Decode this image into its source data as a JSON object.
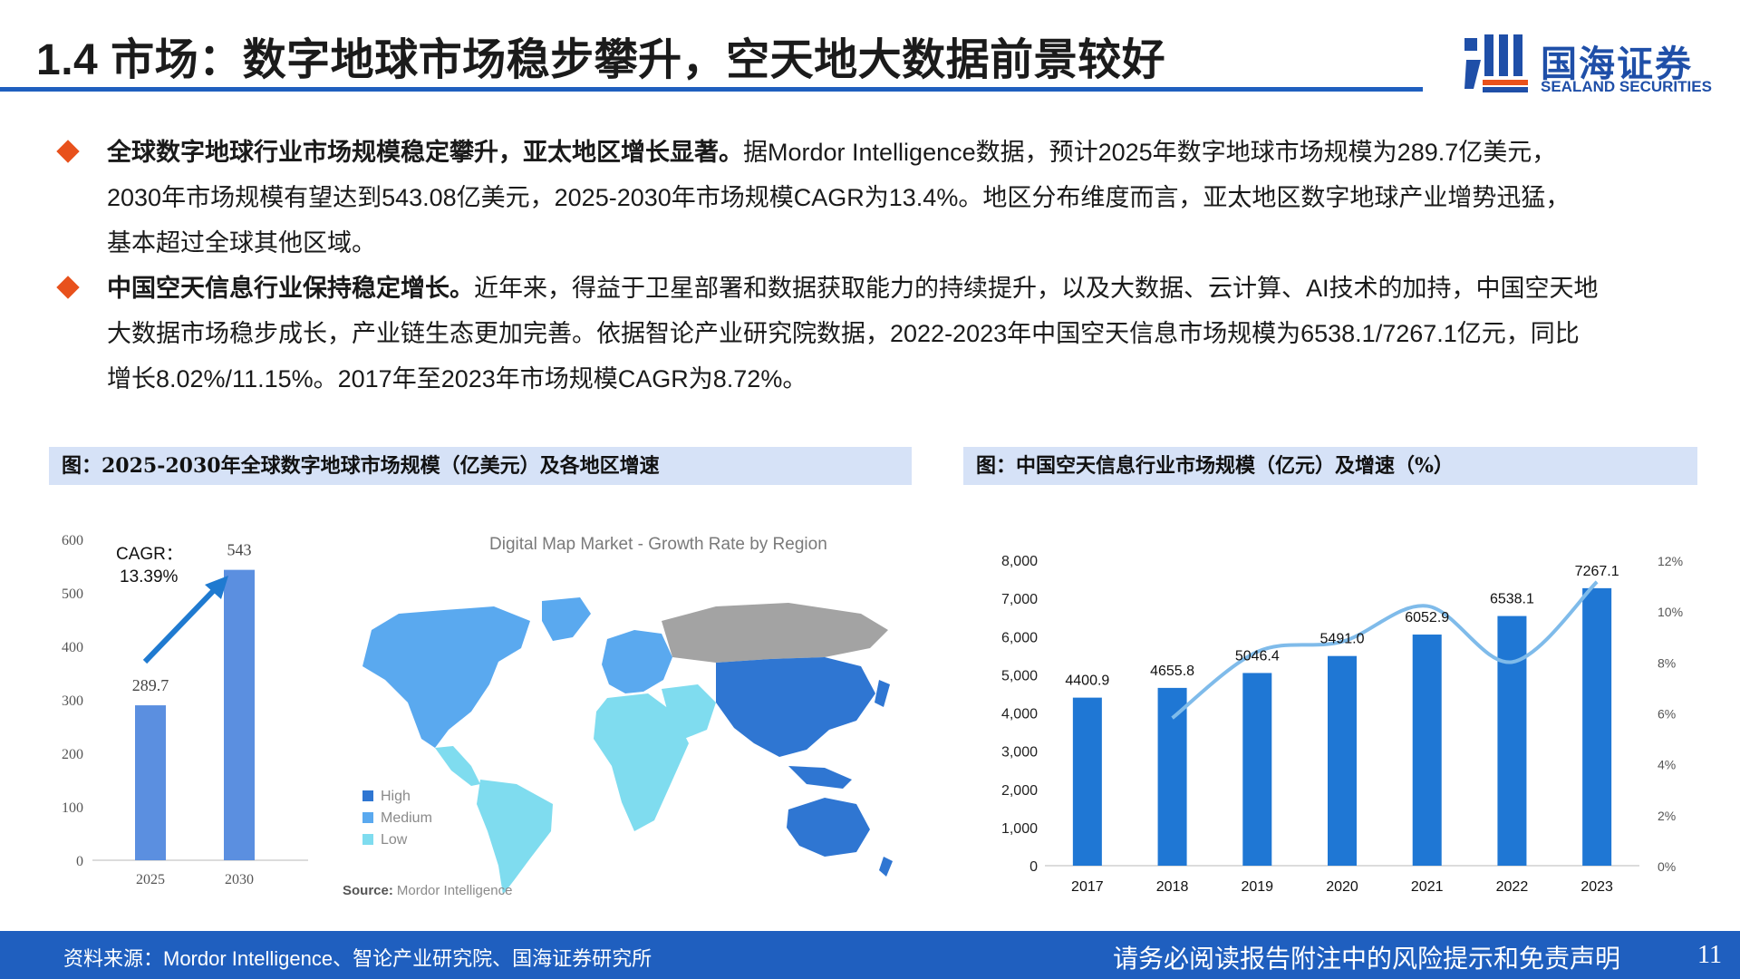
{
  "header": {
    "title": "1.4 市场：数字地球市场稳步攀升，空天地大数据前景较好",
    "logo_name": "国海证券",
    "logo_en": "SEALAND SECURITIES"
  },
  "bullets": [
    {
      "lead": "全球数字地球行业市场规模稳定攀升，亚太地区增长显著。",
      "lines": [
        "据Mordor Intelligence数据，预计2025年数字地球市场规模为289.7亿美元，",
        "2030年市场规模有望达到543.08亿美元，2025-2030年市场规模CAGR为13.4%。地区分布维度而言，亚太地区数字地球产业增势迅猛，",
        "基本超过全球其他区域。"
      ]
    },
    {
      "lead": "中国空天信息行业保持稳定增长。",
      "lines": [
        "近年来，得益于卫星部署和数据获取能力的持续提升，以及大数据、云计算、AI技术的加持，中国空天地",
        "大数据市场稳步成长，产业链生态更加完善。依据智论产业研究院数据，2022-2023年中国空天信息市场规模为6538.1/7267.1亿元，同比",
        "增长8.02%/11.15%。2017年至2023年市场规模CAGR为8.72%。"
      ]
    }
  ],
  "captions": {
    "left": "图：2025-2030年全球数字地球市场规模（亿美元）及各地区增速",
    "right": "图：中国空天信息行业市场规模（亿元）及增速（%）"
  },
  "colors": {
    "brand_blue": "#1f5fbf",
    "accent_orange": "#e8511c",
    "caption_bg": "#d6e2f7",
    "bar_light": "#5b8fe0",
    "bar_dark": "#1f77d4",
    "growth_line": "#7fbbea",
    "map_high": "#2f76d2",
    "map_medium": "#5aa9ef",
    "map_low": "#7fdcef",
    "map_nodata": "#a3a3a3"
  },
  "map": {
    "title": "Digital Map Market - Growth Rate by Region",
    "legend": [
      "High",
      "Medium",
      "Low"
    ],
    "source_label": "Source:",
    "source_value": "Mordor Intelligence"
  },
  "chart_data": [
    {
      "type": "bar",
      "categories": [
        "2025",
        "2030"
      ],
      "values": [
        289.7,
        543
      ],
      "data_labels": [
        "289.7",
        "543"
      ],
      "ylim": [
        0,
        600
      ],
      "yticks": [
        0,
        100,
        200,
        300,
        400,
        500,
        600
      ],
      "annotation": "CAGR：\n13.39%",
      "grid": false
    },
    {
      "type": "bar",
      "categories": [
        "2017",
        "2018",
        "2019",
        "2020",
        "2021",
        "2022",
        "2023"
      ],
      "series": [
        {
          "type": "bar",
          "values": [
            4400.9,
            4655.8,
            5046.4,
            5491.0,
            6052.9,
            6538.1,
            7267.1
          ],
          "data_labels": [
            "4400.9",
            "4655.8",
            "5046.4",
            "5491.0",
            "6052.9",
            "6538.1",
            "7267.1"
          ]
        },
        {
          "type": "line",
          "axis": "right",
          "values": [
            null,
            5.8,
            8.4,
            8.8,
            10.2,
            8.0,
            11.15
          ]
        }
      ],
      "ylim": [
        0,
        8000
      ],
      "yticks": [
        "0",
        "1,000",
        "2,000",
        "3,000",
        "4,000",
        "5,000",
        "6,000",
        "7,000",
        "8,000"
      ],
      "y2lim": [
        0,
        12
      ],
      "y2ticks": [
        "0%",
        "2%",
        "4%",
        "6%",
        "8%",
        "10%",
        "12%"
      ],
      "grid": false
    }
  ],
  "footer": {
    "source": "资料来源：Mordor Intelligence、智论产业研究院、国海证券研究所",
    "disclaimer": "请务必阅读报告附注中的风险提示和免责声明",
    "page": "11"
  }
}
